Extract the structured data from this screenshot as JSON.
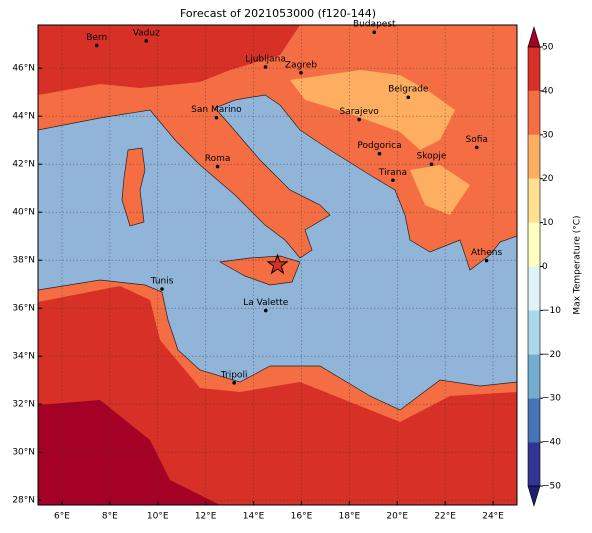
{
  "title": "Forecast of 2021053000 (f120-144)",
  "map": {
    "xlim": [
      5,
      25
    ],
    "ylim": [
      27.8,
      47.8
    ],
    "xticks": [
      {
        "value": 6,
        "label": "6°E"
      },
      {
        "value": 8,
        "label": "8°E"
      },
      {
        "value": 10,
        "label": "10°E"
      },
      {
        "value": 12,
        "label": "12°E"
      },
      {
        "value": 14,
        "label": "14°E"
      },
      {
        "value": 16,
        "label": "16°E"
      },
      {
        "value": 18,
        "label": "18°E"
      },
      {
        "value": 20,
        "label": "20°E"
      },
      {
        "value": 22,
        "label": "22°E"
      },
      {
        "value": 24,
        "label": "24°E"
      }
    ],
    "yticks": [
      {
        "value": 28,
        "label": "28°N"
      },
      {
        "value": 30,
        "label": "30°N"
      },
      {
        "value": 32,
        "label": "32°N"
      },
      {
        "value": 34,
        "label": "34°N"
      },
      {
        "value": 36,
        "label": "36°N"
      },
      {
        "value": 38,
        "label": "38°N"
      },
      {
        "value": 40,
        "label": "40°N"
      },
      {
        "value": 42,
        "label": "42°N"
      },
      {
        "value": 44,
        "label": "44°N"
      },
      {
        "value": 46,
        "label": "46°N"
      }
    ],
    "cities": [
      {
        "name": "Bern",
        "lon": 7.45,
        "lat": 46.95
      },
      {
        "name": "Vaduz",
        "lon": 9.52,
        "lat": 47.14
      },
      {
        "name": "Budapest",
        "lon": 19.04,
        "lat": 47.5
      },
      {
        "name": "Ljubljana",
        "lon": 14.5,
        "lat": 46.05
      },
      {
        "name": "Zagreb",
        "lon": 15.98,
        "lat": 45.81
      },
      {
        "name": "Belgrade",
        "lon": 20.46,
        "lat": 44.79
      },
      {
        "name": "San Marino",
        "lon": 12.45,
        "lat": 43.94
      },
      {
        "name": "Sarajevo",
        "lon": 18.41,
        "lat": 43.86
      },
      {
        "name": "Sofia",
        "lon": 23.32,
        "lat": 42.7
      },
      {
        "name": "Podgorica",
        "lon": 19.26,
        "lat": 42.44
      },
      {
        "name": "Skopje",
        "lon": 21.43,
        "lat": 42.0
      },
      {
        "name": "Roma",
        "lon": 12.5,
        "lat": 41.9
      },
      {
        "name": "Tirana",
        "lon": 19.82,
        "lat": 41.33
      },
      {
        "name": "Athens",
        "lon": 23.73,
        "lat": 37.98
      },
      {
        "name": "Tunis",
        "lon": 10.18,
        "lat": 36.8
      },
      {
        "name": "La Valette",
        "lon": 14.51,
        "lat": 35.9
      },
      {
        "name": "Tripoli",
        "lon": 13.19,
        "lat": 32.89
      }
    ],
    "marker": {
      "lon": 15.0,
      "lat": 37.8
    }
  },
  "colorbar": {
    "label": "Max Temperature (°C)",
    "ylim": [
      -50,
      50
    ],
    "ticks": [
      {
        "value": -50,
        "label": "−50"
      },
      {
        "value": -40,
        "label": "−40"
      },
      {
        "value": -30,
        "label": "−30"
      },
      {
        "value": -20,
        "label": "−20"
      },
      {
        "value": -10,
        "label": "−10"
      },
      0,
      10,
      20,
      30,
      40,
      50
    ],
    "colors": [
      "#313695",
      "#4575b4",
      "#74add1",
      "#abd9e9",
      "#e0f3f8",
      "#ffffbf",
      "#fee090",
      "#fdae61",
      "#f46d43",
      "#d73027"
    ],
    "under_color": "#1e1e6e",
    "over_color": "#a50026"
  }
}
